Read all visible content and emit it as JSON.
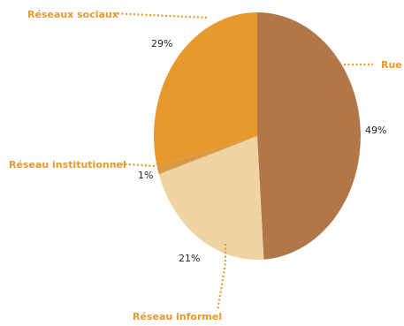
{
  "chart_data": {
    "type": "pie",
    "slices": [
      {
        "label": "Rue",
        "value": 49,
        "value_label": "49%",
        "color": "#b27748"
      },
      {
        "label": "Réseau informel",
        "value": 21,
        "value_label": "21%",
        "color": "#f0d3a3"
      },
      {
        "label": "Réseau institutionnel",
        "value": 1,
        "value_label": "1%",
        "color": "#d89a45"
      },
      {
        "label": "Réseaux sociaux",
        "value": 29,
        "value_label": "29%",
        "color": "#e8992e"
      }
    ],
    "label_color": "#e39a32",
    "value_label_color": "#222222"
  }
}
